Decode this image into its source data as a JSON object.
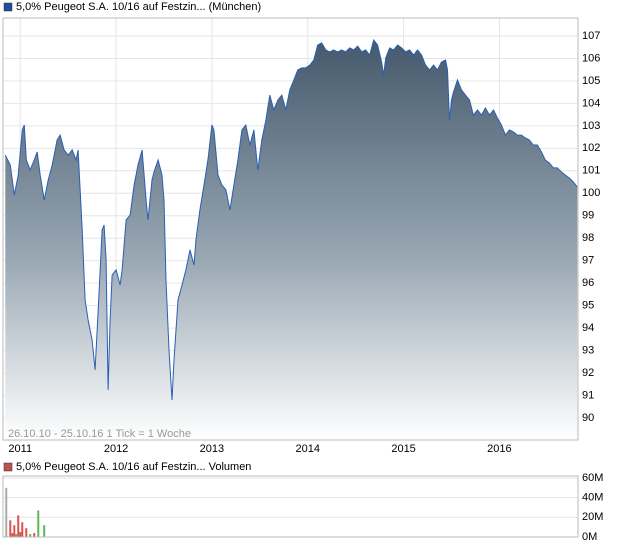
{
  "chart_data": [
    {
      "type": "area",
      "series": [
        {
          "name": "5,0% Peugeot S.A. 10/16 auf Festzin... (München)",
          "color": "#2b5fb4",
          "legend_color": "#1f4e9c"
        }
      ],
      "annotation": "26.10.10 - 25.10.16   1 Tick = 1 Woche",
      "x": [
        2010.844,
        2010.896,
        2010.938,
        2010.979,
        2011.021,
        2011.042,
        2011.063,
        2011.104,
        2011.146,
        2011.177,
        2011.208,
        2011.25,
        2011.292,
        2011.333,
        2011.385,
        2011.417,
        2011.458,
        2011.5,
        2011.542,
        2011.583,
        2011.604,
        2011.646,
        2011.677,
        2011.708,
        2011.75,
        2011.781,
        2011.813,
        2011.854,
        2011.875,
        2011.896,
        2011.917,
        2011.938,
        2011.958,
        2012.0,
        2012.042,
        2012.063,
        2012.104,
        2012.146,
        2012.188,
        2012.229,
        2012.271,
        2012.313,
        2012.333,
        2012.375,
        2012.396,
        2012.438,
        2012.479,
        2012.5,
        2012.521,
        2012.552,
        2012.583,
        2012.604,
        2012.646,
        2012.688,
        2012.729,
        2012.771,
        2012.813,
        2012.833,
        2012.875,
        2012.917,
        2012.958,
        2013.0,
        2013.021,
        2013.063,
        2013.104,
        2013.146,
        2013.188,
        2013.229,
        2013.271,
        2013.313,
        2013.354,
        2013.396,
        2013.438,
        2013.479,
        2013.521,
        2013.563,
        2013.604,
        2013.646,
        2013.688,
        2013.729,
        2013.771,
        2013.813,
        2013.854,
        2013.896,
        2013.938,
        2013.979,
        2014.021,
        2014.063,
        2014.104,
        2014.146,
        2014.188,
        2014.229,
        2014.271,
        2014.313,
        2014.354,
        2014.396,
        2014.438,
        2014.479,
        2014.521,
        2014.563,
        2014.604,
        2014.646,
        2014.688,
        2014.729,
        2014.771,
        2014.792,
        2014.813,
        2014.854,
        2014.896,
        2014.938,
        2014.979,
        2015.021,
        2015.063,
        2015.104,
        2015.146,
        2015.188,
        2015.229,
        2015.271,
        2015.313,
        2015.354,
        2015.396,
        2015.438,
        2015.458,
        2015.479,
        2015.5,
        2015.521,
        2015.563,
        2015.604,
        2015.646,
        2015.688,
        2015.729,
        2015.771,
        2015.813,
        2015.854,
        2015.896,
        2015.938,
        2015.979,
        2016.021,
        2016.063,
        2016.104,
        2016.146,
        2016.188,
        2016.229,
        2016.271,
        2016.313,
        2016.354,
        2016.396,
        2016.438,
        2016.479,
        2016.521,
        2016.563,
        2016.604,
        2016.646,
        2016.688,
        2016.729,
        2016.771,
        2016.813
      ],
      "values": [
        101.7,
        101.26,
        99.92,
        100.81,
        102.82,
        103.04,
        101.48,
        101.04,
        101.48,
        101.84,
        100.81,
        99.7,
        100.59,
        101.26,
        102.37,
        102.59,
        101.93,
        101.7,
        101.93,
        101.48,
        101.93,
        98.37,
        95.25,
        94.36,
        93.47,
        92.14,
        94.81,
        98.37,
        98.59,
        97.03,
        91.25,
        94.36,
        96.36,
        96.59,
        95.92,
        96.59,
        98.81,
        99.03,
        100.37,
        101.26,
        101.93,
        99.7,
        98.81,
        100.59,
        100.95,
        101.48,
        100.81,
        99.7,
        96.14,
        93.03,
        90.8,
        92.58,
        95.25,
        95.92,
        96.59,
        97.48,
        96.81,
        97.92,
        99.26,
        100.37,
        101.48,
        103.04,
        102.82,
        100.81,
        100.37,
        100.15,
        99.26,
        100.37,
        101.48,
        102.82,
        103.04,
        102.15,
        102.82,
        101.04,
        102.37,
        103.26,
        104.37,
        103.71,
        104.15,
        104.37,
        103.71,
        104.6,
        105.04,
        105.49,
        105.58,
        105.58,
        105.71,
        105.93,
        106.6,
        106.69,
        106.38,
        106.29,
        106.38,
        106.29,
        106.38,
        106.29,
        106.47,
        106.38,
        106.55,
        106.29,
        106.38,
        106.15,
        106.82,
        106.6,
        105.84,
        105.26,
        106.02,
        106.47,
        106.38,
        106.6,
        106.47,
        106.29,
        106.38,
        106.15,
        106.38,
        106.15,
        105.71,
        105.49,
        105.71,
        105.49,
        105.84,
        105.93,
        105.49,
        103.26,
        104.15,
        104.51,
        105.04,
        104.6,
        104.37,
        104.15,
        103.48,
        103.71,
        103.48,
        103.8,
        103.48,
        103.71,
        103.35,
        103.04,
        102.59,
        102.82,
        102.73,
        102.59,
        102.59,
        102.46,
        102.37,
        102.15,
        102.15,
        101.84,
        101.48,
        101.35,
        101.13,
        101.13,
        100.95,
        100.81,
        100.68,
        100.5,
        100.28
      ],
      "xlim": [
        2010.82,
        2016.82
      ],
      "xticks": [
        2011,
        2012,
        2013,
        2014,
        2015,
        2016
      ],
      "ylim": [
        89.02,
        107.8
      ],
      "yticks": [
        90,
        91,
        92,
        93,
        94,
        95,
        96,
        97,
        98,
        99,
        100,
        101,
        102,
        103,
        104,
        105,
        106,
        107
      ],
      "grid": true
    },
    {
      "type": "bar",
      "series": [
        {
          "name": "5,0% Peugeot S.A. 10/16 auf Festzin... Volumen",
          "color": "#c0504d"
        }
      ],
      "x": [
        2010.854,
        2010.896,
        2010.917,
        2010.938,
        2010.958,
        2010.979,
        2011.0,
        2011.021,
        2011.063,
        2011.104,
        2011.146,
        2011.188,
        2011.25
      ],
      "values": [
        50000000,
        17000000,
        4000000,
        12000000,
        3000000,
        22000000,
        5000000,
        15000000,
        9000000,
        3000000,
        4000000,
        27000000,
        12000000
      ],
      "bar_colors": [
        "#aaaaaa",
        "#d9534f",
        "#d9534f",
        "#d9534f",
        "#5cb85c",
        "#d9534f",
        "#d9534f",
        "#d9534f",
        "#d9534f",
        "#5cb85c",
        "#d9534f",
        "#5cb85c",
        "#5cb85c"
      ],
      "xlim": [
        2010.82,
        2016.82
      ],
      "ylim": [
        0,
        62000000
      ],
      "yticks": [
        {
          "value": 0,
          "label": "0M"
        },
        {
          "value": 20000000,
          "label": "20M"
        },
        {
          "value": 40000000,
          "label": "40M"
        },
        {
          "value": 60000000,
          "label": "60M"
        }
      ],
      "grid": true
    }
  ]
}
